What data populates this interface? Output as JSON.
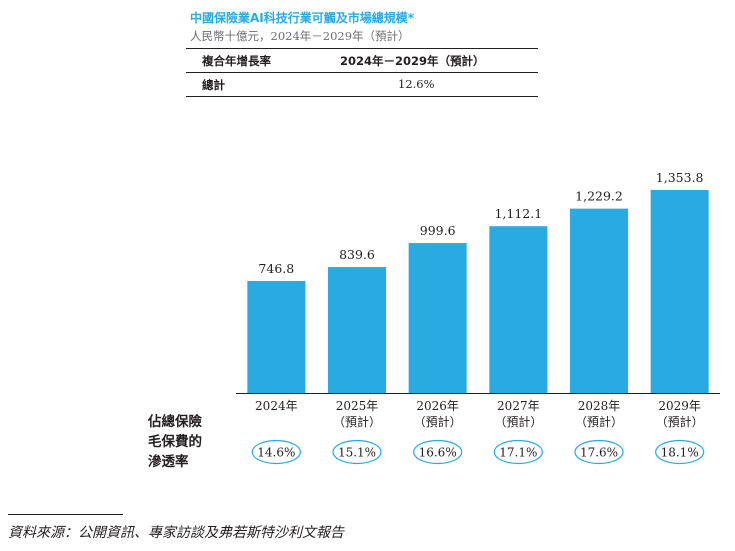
{
  "title": "中國保險業AI科技行業可觸及市場總規模*",
  "subtitle": "人民幣十億元，2024年－2029年（預計）",
  "cagr_table": {
    "header": [
      "複合年增長率",
      "2024年－2029年（預計）"
    ],
    "rows": [
      {
        "label": "總計",
        "value": "12.6%"
      }
    ]
  },
  "side_label": [
    "佔總保險",
    "毛保費的",
    "滲透率"
  ],
  "source": "資料來源：公開資訊、專家訪談及弗若斯特沙利文報告",
  "colors": {
    "bar": "#29abe2",
    "title": "#29abe2",
    "ellipse_stroke": "#29abe2",
    "text": "#231f20"
  },
  "chart_data": {
    "type": "bar",
    "categories": [
      "2024年",
      "2025年",
      "2026年",
      "2027年",
      "2028年",
      "2029年"
    ],
    "category_notes": [
      "",
      "（預計）",
      "（預計）",
      "（預計）",
      "（預計）",
      "（預計）"
    ],
    "values": [
      746.8,
      839.6,
      999.6,
      1112.1,
      1229.2,
      1353.8
    ],
    "value_labels": [
      "746.8",
      "839.6",
      "999.6",
      "1,112.1",
      "1,229.2",
      "1,353.8"
    ],
    "penetration_rates": [
      "14.6%",
      "15.1%",
      "16.6%",
      "17.1%",
      "17.6%",
      "18.1%"
    ],
    "ylim": [
      0,
      1420
    ]
  }
}
